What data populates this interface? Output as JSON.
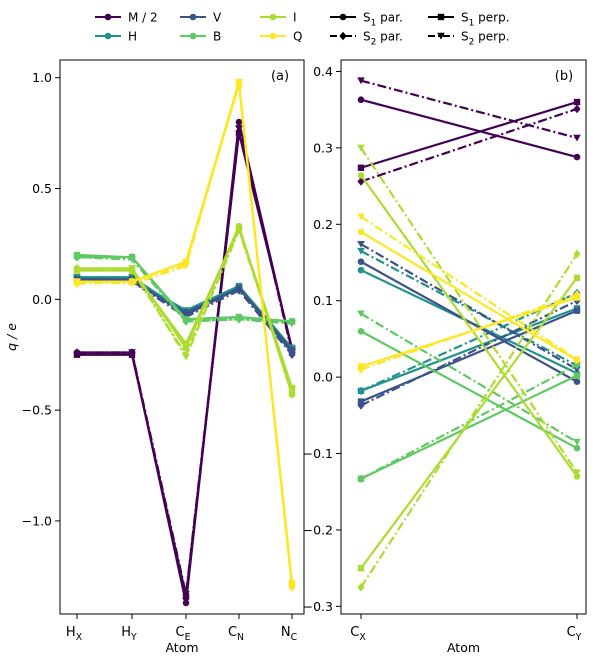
{
  "colors": {
    "M": "#440154",
    "H": "#21918c",
    "V": "#3b528b",
    "B": "#5ec962",
    "I": "#addc30",
    "Q": "#fde725",
    "axis": "#000000",
    "background": "#ffffff"
  },
  "legend": {
    "molecules": [
      {
        "key": "M",
        "label": "M / 2"
      },
      {
        "key": "H",
        "label": "H"
      },
      {
        "key": "V",
        "label": "V"
      },
      {
        "key": "B",
        "label": "B"
      },
      {
        "key": "I",
        "label": "I"
      },
      {
        "key": "Q",
        "label": "Q"
      }
    ],
    "styles": [
      {
        "key": "s1par",
        "label": "S",
        "sub": "1",
        "suffix": " par.",
        "marker": "circle",
        "dash": "solid"
      },
      {
        "key": "s2par",
        "label": "S",
        "sub": "2",
        "suffix": " par.",
        "marker": "diamond",
        "dash": "dashdot"
      },
      {
        "key": "s1perp",
        "label": "S",
        "sub": "1",
        "suffix": " perp.",
        "marker": "square",
        "dash": "solid"
      },
      {
        "key": "s2perp",
        "label": "S",
        "sub": "2",
        "suffix": " perp.",
        "marker": "triangle",
        "dash": "dashdot"
      }
    ]
  },
  "chart_data": [
    {
      "type": "line",
      "panel": "(a)",
      "ylabel": "q / e",
      "xlabel": "Atom",
      "categories": [
        {
          "main": "H",
          "sub": "X"
        },
        {
          "main": "H",
          "sub": "Y"
        },
        {
          "main": "C",
          "sub": "E"
        },
        {
          "main": "C",
          "sub": "N"
        },
        {
          "main": "N",
          "sub": "C"
        }
      ],
      "ylim": [
        -1.42,
        1.08
      ],
      "yticks": [
        1.0,
        0.5,
        0.0,
        -0.5,
        -1.0
      ],
      "ytick_labels": [
        "1.0",
        "0.5",
        "0.0",
        "−0.5",
        "−1.0"
      ],
      "series": [
        {
          "mol": "M",
          "style": "s1par",
          "values": [
            -0.24,
            -0.24,
            -1.37,
            0.8,
            -0.23
          ]
        },
        {
          "mol": "M",
          "style": "s2par",
          "values": [
            -0.24,
            -0.24,
            -1.35,
            0.78,
            -0.24
          ]
        },
        {
          "mol": "M",
          "style": "s1perp",
          "values": [
            -0.25,
            -0.25,
            -1.34,
            0.75,
            -0.22
          ]
        },
        {
          "mol": "M",
          "style": "s2perp",
          "values": [
            -0.25,
            -0.24,
            -1.33,
            0.77,
            -0.23
          ]
        },
        {
          "mol": "H",
          "style": "s1par",
          "values": [
            0.1,
            0.1,
            -0.06,
            0.05,
            -0.22
          ]
        },
        {
          "mol": "H",
          "style": "s2par",
          "values": [
            0.09,
            0.09,
            -0.07,
            0.05,
            -0.23
          ]
        },
        {
          "mol": "H",
          "style": "s1perp",
          "values": [
            0.1,
            0.09,
            -0.05,
            0.06,
            -0.22
          ]
        },
        {
          "mol": "H",
          "style": "s2perp",
          "values": [
            0.1,
            0.1,
            -0.06,
            0.05,
            -0.22
          ]
        },
        {
          "mol": "V",
          "style": "s1par",
          "values": [
            0.09,
            0.09,
            -0.07,
            0.05,
            -0.24
          ]
        },
        {
          "mol": "V",
          "style": "s2par",
          "values": [
            0.08,
            0.08,
            -0.08,
            0.04,
            -0.25
          ]
        },
        {
          "mol": "V",
          "style": "s1perp",
          "values": [
            0.09,
            0.08,
            -0.06,
            0.05,
            -0.23
          ]
        },
        {
          "mol": "V",
          "style": "s2perp",
          "values": [
            0.09,
            0.09,
            -0.07,
            0.05,
            -0.24
          ]
        },
        {
          "mol": "B",
          "style": "s1par",
          "values": [
            0.19,
            0.19,
            -0.09,
            -0.08,
            -0.1
          ]
        },
        {
          "mol": "B",
          "style": "s2par",
          "values": [
            0.19,
            0.19,
            -0.1,
            -0.09,
            -0.1
          ]
        },
        {
          "mol": "B",
          "style": "s1perp",
          "values": [
            0.2,
            0.19,
            -0.09,
            -0.08,
            -0.1
          ]
        },
        {
          "mol": "B",
          "style": "s2perp",
          "values": [
            0.19,
            0.18,
            -0.1,
            -0.09,
            -0.11
          ]
        },
        {
          "mol": "I",
          "style": "s1par",
          "values": [
            0.14,
            0.14,
            -0.22,
            0.33,
            -0.43
          ]
        },
        {
          "mol": "I",
          "style": "s2par",
          "values": [
            0.14,
            0.13,
            -0.25,
            0.32,
            -0.42
          ]
        },
        {
          "mol": "I",
          "style": "s1perp",
          "values": [
            0.13,
            0.13,
            -0.2,
            0.32,
            -0.4
          ]
        },
        {
          "mol": "I",
          "style": "s2perp",
          "values": [
            0.13,
            0.14,
            -0.26,
            0.31,
            -0.41
          ]
        },
        {
          "mol": "Q",
          "style": "s1par",
          "values": [
            0.08,
            0.08,
            0.17,
            0.98,
            -1.29
          ]
        },
        {
          "mol": "Q",
          "style": "s2par",
          "values": [
            0.07,
            0.08,
            0.16,
            0.98,
            -1.3
          ]
        },
        {
          "mol": "Q",
          "style": "s1perp",
          "values": [
            0.08,
            0.08,
            0.17,
            0.97,
            -1.28
          ]
        },
        {
          "mol": "Q",
          "style": "s2perp",
          "values": [
            0.08,
            0.07,
            0.15,
            0.98,
            -1.29
          ]
        }
      ]
    },
    {
      "type": "line",
      "panel": "(b)",
      "ylabel": "",
      "xlabel": "Atom",
      "categories": [
        {
          "main": "C",
          "sub": "X"
        },
        {
          "main": "C",
          "sub": "Y"
        }
      ],
      "ylim": [
        -0.31,
        0.415
      ],
      "yticks": [
        0.4,
        0.3,
        0.2,
        0.1,
        0.0,
        -0.1,
        -0.2,
        -0.3
      ],
      "ytick_labels": [
        "0.4",
        "0.3",
        "0.2",
        "0.1",
        "0.0",
        "−0.1",
        "−0.2",
        "−0.3"
      ],
      "series": [
        {
          "mol": "M",
          "style": "s1par",
          "values": [
            0.363,
            0.288
          ]
        },
        {
          "mol": "M",
          "style": "s2par",
          "values": [
            0.256,
            0.351
          ]
        },
        {
          "mol": "M",
          "style": "s1perp",
          "values": [
            0.274,
            0.36
          ]
        },
        {
          "mol": "M",
          "style": "s2perp",
          "values": [
            0.388,
            0.313
          ]
        },
        {
          "mol": "H",
          "style": "s1par",
          "values": [
            0.14,
            0.005
          ]
        },
        {
          "mol": "H",
          "style": "s2par",
          "values": [
            -0.018,
            0.11
          ]
        },
        {
          "mol": "H",
          "style": "s1perp",
          "values": [
            -0.018,
            0.09
          ]
        },
        {
          "mol": "H",
          "style": "s2perp",
          "values": [
            0.165,
            0.015
          ]
        },
        {
          "mol": "V",
          "style": "s1par",
          "values": [
            0.151,
            -0.006
          ]
        },
        {
          "mol": "V",
          "style": "s2par",
          "values": [
            -0.037,
            0.1
          ]
        },
        {
          "mol": "V",
          "style": "s1perp",
          "values": [
            -0.032,
            0.087
          ]
        },
        {
          "mol": "V",
          "style": "s2perp",
          "values": [
            0.174,
            0.01
          ]
        },
        {
          "mol": "B",
          "style": "s1par",
          "values": [
            0.06,
            -0.093
          ]
        },
        {
          "mol": "B",
          "style": "s2par",
          "values": [
            -0.133,
            0.016
          ]
        },
        {
          "mol": "B",
          "style": "s1perp",
          "values": [
            -0.133,
            0.002
          ]
        },
        {
          "mol": "B",
          "style": "s2perp",
          "values": [
            0.083,
            -0.085
          ]
        },
        {
          "mol": "I",
          "style": "s1par",
          "values": [
            0.264,
            -0.13
          ]
        },
        {
          "mol": "I",
          "style": "s2par",
          "values": [
            -0.275,
            0.161
          ]
        },
        {
          "mol": "I",
          "style": "s1perp",
          "values": [
            -0.25,
            0.13
          ]
        },
        {
          "mol": "I",
          "style": "s2perp",
          "values": [
            0.3,
            -0.125
          ]
        },
        {
          "mol": "Q",
          "style": "s1par",
          "values": [
            0.19,
            0.022
          ]
        },
        {
          "mol": "Q",
          "style": "s2par",
          "values": [
            0.01,
            0.108
          ]
        },
        {
          "mol": "Q",
          "style": "s1perp",
          "values": [
            0.014,
            0.104
          ]
        },
        {
          "mol": "Q",
          "style": "s2perp",
          "values": [
            0.21,
            0.023
          ]
        }
      ]
    }
  ]
}
